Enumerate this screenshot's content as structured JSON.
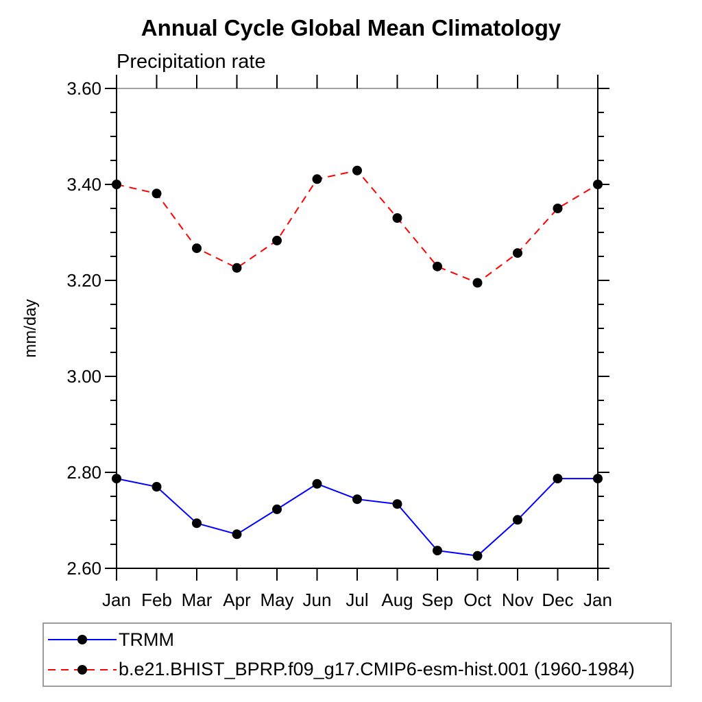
{
  "header": {
    "title": "Annual Cycle Global Mean Climatology",
    "subtitle": "Precipitation rate"
  },
  "chart_data": {
    "type": "line",
    "title": "Annual Cycle Global Mean Climatology",
    "subtitle": "Precipitation rate",
    "ylabel": "mm/day",
    "xlabel": "",
    "categories": [
      "Jan",
      "Feb",
      "Mar",
      "Apr",
      "May",
      "Jun",
      "Jul",
      "Aug",
      "Sep",
      "Oct",
      "Nov",
      "Dec",
      "Jan"
    ],
    "ylim": [
      2.6,
      3.6
    ],
    "y_major_step": 0.2,
    "y_minor_step": 0.05,
    "y_tick_format_decimals": 2,
    "grid": "off",
    "legend_position": "bottom-left-box",
    "frame_color": "#000000",
    "top_frame_color": "#808080",
    "marker": {
      "shape": "circle",
      "color": "#000000",
      "radius": 7
    },
    "series": [
      {
        "name": "TRMM",
        "color": "#0000ff",
        "line_style": "solid",
        "values": [
          2.787,
          2.77,
          2.694,
          2.671,
          2.723,
          2.776,
          2.744,
          2.734,
          2.637,
          2.626,
          2.701,
          2.787,
          2.787
        ]
      },
      {
        "name": "b.e21.BHIST_BPRP.f09_g17.CMIP6-esm-hist.001 (1960-1984)",
        "color": "#ff0000",
        "line_style": "dashed",
        "values": [
          3.4,
          3.381,
          3.267,
          3.226,
          3.283,
          3.411,
          3.429,
          3.33,
          3.229,
          3.195,
          3.257,
          3.35,
          3.4
        ]
      }
    ]
  }
}
